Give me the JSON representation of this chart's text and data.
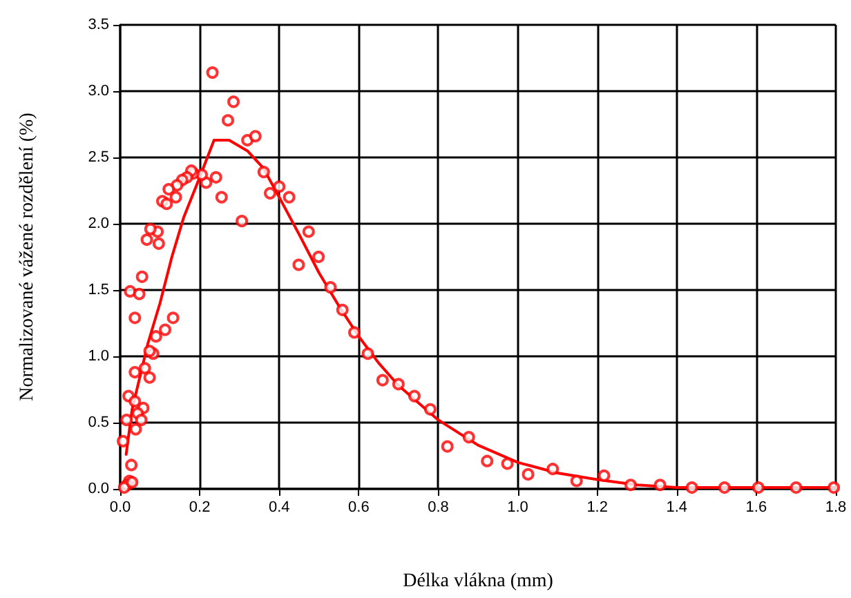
{
  "chart_data": {
    "type": "scatter",
    "xlabel": "Délka vlákna (mm)",
    "ylabel": "Normalizované vážené rozdělení (%)",
    "xlim": [
      0,
      1.8
    ],
    "xticks": [
      {
        "value": 0,
        "label": "0.0"
      },
      {
        "value": 0.2,
        "label": "0.2"
      },
      {
        "value": 0.4,
        "label": "0.4"
      },
      {
        "value": 0.6,
        "label": "0.6"
      },
      {
        "value": 0.8,
        "label": "0.8"
      },
      {
        "value": 1,
        "label": "1.0"
      },
      {
        "value": 1.2,
        "label": "1.2"
      },
      {
        "value": 1.4,
        "label": "1.4"
      },
      {
        "value": 1.6,
        "label": "1.6"
      },
      {
        "value": 1.8,
        "label": "1.8"
      }
    ],
    "ylim": [
      0,
      3.5
    ],
    "yticks": [
      {
        "value": 0,
        "label": "0.0"
      },
      {
        "value": 0.5,
        "label": "0.5"
      },
      {
        "value": 1,
        "label": "1.0"
      },
      {
        "value": 1.5,
        "label": "1.5"
      },
      {
        "value": 2,
        "label": "2.0"
      },
      {
        "value": 2.5,
        "label": "2.5"
      },
      {
        "value": 3,
        "label": "3.0"
      },
      {
        "value": 3.5,
        "label": "3.5"
      }
    ],
    "grid": true,
    "series": [
      {
        "color": "#ff0000",
        "marker": "circle",
        "x": [
          0.232,
          0.285,
          0.271,
          0.32,
          0.34,
          0.241,
          0.255,
          0.306,
          0.361,
          0.377,
          0.4,
          0.425,
          0.474,
          0.449,
          0.499,
          0.529,
          0.559,
          0.589,
          0.216,
          0.205,
          0.184,
          0.179,
          0.168,
          0.156,
          0.143,
          0.122,
          0.14,
          0.106,
          0.117,
          0.097,
          0.094,
          0.076,
          0.067,
          0.055,
          0.025,
          0.048,
          0.037,
          0.133,
          0.113,
          0.09,
          0.083,
          0.074,
          0.062,
          0.037,
          0.074,
          0.021,
          0.037,
          0.058,
          0.044,
          0.053,
          0.016,
          0.039,
          0.007,
          0.028,
          0.023,
          0.017,
          0.01,
          0.03,
          0.623,
          0.66,
          0.7,
          0.74,
          0.78,
          0.823,
          0.877,
          0.923,
          0.974,
          1.026,
          1.088,
          1.148,
          1.217,
          1.284,
          1.358,
          1.438,
          1.52,
          1.605,
          1.7,
          1.795
        ],
        "values": [
          3.14,
          2.92,
          2.78,
          2.63,
          2.66,
          2.35,
          2.2,
          2.02,
          2.39,
          2.23,
          2.28,
          2.2,
          1.94,
          1.69,
          1.75,
          1.52,
          1.35,
          1.18,
          2.31,
          2.37,
          2.38,
          2.4,
          2.35,
          2.33,
          2.29,
          2.26,
          2.2,
          2.17,
          2.15,
          1.85,
          1.94,
          1.96,
          1.88,
          1.6,
          1.49,
          1.47,
          1.29,
          1.29,
          1.2,
          1.15,
          1.02,
          1.04,
          0.91,
          0.88,
          0.84,
          0.7,
          0.66,
          0.61,
          0.57,
          0.52,
          0.52,
          0.45,
          0.36,
          0.18,
          0.06,
          0.03,
          0.01,
          0.05,
          1.02,
          0.82,
          0.79,
          0.7,
          0.6,
          0.32,
          0.39,
          0.21,
          0.19,
          0.11,
          0.15,
          0.06,
          0.1,
          0.03,
          0.03,
          0.01,
          0.01,
          0.01,
          0.01,
          0.01
        ]
      },
      {
        "type": "line",
        "color": "#ff0000",
        "marker": "none",
        "line_style": "solid",
        "x": [
          0.015,
          0.03,
          0.05,
          0.07,
          0.1,
          0.13,
          0.16,
          0.2,
          0.236,
          0.274,
          0.32,
          0.36,
          0.4,
          0.45,
          0.5,
          0.55,
          0.6,
          0.65,
          0.7,
          0.8,
          0.9,
          1.0,
          1.1,
          1.2,
          1.3,
          1.4,
          1.6,
          1.8
        ],
        "values": [
          0.26,
          0.6,
          0.85,
          1.1,
          1.4,
          1.75,
          2.05,
          2.35,
          2.63,
          2.63,
          2.55,
          2.42,
          2.2,
          1.92,
          1.63,
          1.38,
          1.15,
          0.95,
          0.78,
          0.52,
          0.33,
          0.2,
          0.12,
          0.07,
          0.03,
          0.01,
          0.01,
          0.01
        ]
      }
    ]
  }
}
